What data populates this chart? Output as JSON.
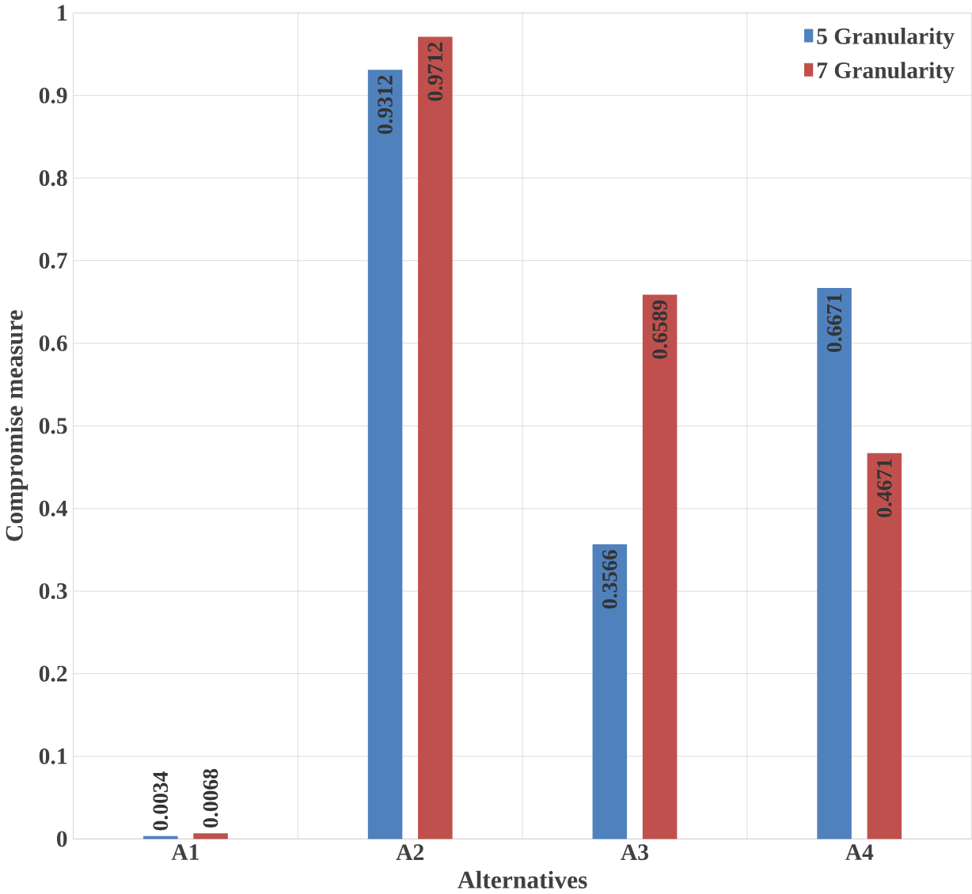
{
  "chart_data": {
    "type": "bar",
    "xlabel": "Alternatives",
    "ylabel": "Compromise measure",
    "categories": [
      "A1",
      "A2",
      "A3",
      "A4"
    ],
    "series": [
      {
        "name": "5 Granularity",
        "color": "#4f81bd",
        "values": [
          0.0034,
          0.9312,
          0.3566,
          0.6671
        ]
      },
      {
        "name": "7 Granularity",
        "color": "#c0504d",
        "values": [
          0.0068,
          0.9712,
          0.6589,
          0.4671
        ]
      }
    ],
    "ylim": [
      0,
      1
    ],
    "yticks": [
      0,
      0.1,
      0.2,
      0.3,
      0.4,
      0.5,
      0.6,
      0.7,
      0.8,
      0.9,
      1
    ],
    "grid": true,
    "legend": "top right",
    "data_labels": true
  }
}
